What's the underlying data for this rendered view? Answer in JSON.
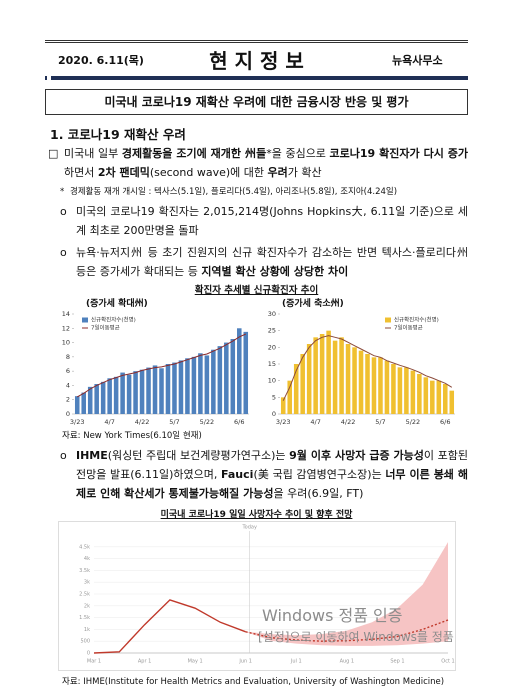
{
  "header": {
    "date": "2020. 6.11(목)",
    "title": "현 지 정 보",
    "office": "뉴욕사무소"
  },
  "subtitle": "미국내 코로나19 재확산 우려에 대한 금융시장 반응 및 평가",
  "section": "1. 코로나19 재확산 우려",
  "items": [
    {
      "marker": "□",
      "segments": [
        {
          "text": "미국내 일부 "
        },
        {
          "text": "경제활동을 조기에 재개한 州들",
          "bold": true
        },
        {
          "text": "*을 중심으로 "
        },
        {
          "text": "코로나19 확진자가 다시 증가",
          "bold": true
        },
        {
          "text": "하면서 "
        },
        {
          "text": "2차 팬데믹",
          "bold": true
        },
        {
          "text": "(second wave)에 대한 "
        },
        {
          "text": "우려",
          "bold": true
        },
        {
          "text": "가 확산"
        }
      ]
    },
    {
      "marker": "*",
      "segments": [
        {
          "text": "경제활동 재개 개시일 : 텍사스(5.1일), 플로리다(5.4일), 아리조나(5.8일), 조지아(4.24일)"
        }
      ]
    },
    {
      "marker": "o",
      "segments": [
        {
          "text": "미국의 코로나19 확진자는 2,015,214명(Johns Hopkins大, 6.11일 기준)으로 세계 최초로 200만명을 돌파"
        }
      ]
    },
    {
      "marker": "o",
      "segments": [
        {
          "text": "뉴욕·뉴저지州 등 초기 진원지의 신규 확진자수가 감소하는 반면 텍사스·플로리다州 등은 증가세가 확대되는 등 "
        },
        {
          "text": "지역별 확산 상황에 상당한 차이",
          "bold": true
        }
      ]
    },
    {
      "marker": "o",
      "segments": [
        {
          "text": "IHME",
          "bold": true
        },
        {
          "text": "(워싱턴 주립대 보건계량평가연구소)는 "
        },
        {
          "text": "9월 이후 사망자 급증 가능성",
          "bold": true
        },
        {
          "text": "이 포함된 전망을 발표(6.11일)하였으며, "
        },
        {
          "text": "Fauci",
          "bold": true
        },
        {
          "text": "(美 국립 감염병연구소장)는 "
        },
        {
          "text": "너무 이른 봉쇄 해제로 인해 확산세가 통제불가능해질 가능성",
          "bold": true
        },
        {
          "text": "을 우려(6.9일, FT)"
        }
      ]
    }
  ],
  "chart_heading": "확진자 추세별 신규확진자 추이",
  "source1": "자료: New York Times(6.10일 현재)",
  "chart3_heading": "미국내 코로나19 일일 사망자수 추이 및 향후 전망",
  "source2": "자료: IHME(Institute for Health Metrics and Evaluation,  University of Washington Medicine)",
  "watermark": [
    "Windows 정품 인증",
    "[설정]으로 이동하여 Windows를 정품"
  ],
  "chart_data": [
    {
      "type": "bar",
      "title": "(증가세 확대州)",
      "categories": [
        "3/23",
        null,
        null,
        null,
        null,
        "4/7",
        null,
        null,
        null,
        null,
        "4/22",
        null,
        null,
        null,
        null,
        "5/7",
        null,
        null,
        null,
        null,
        "5/22",
        null,
        null,
        null,
        null,
        "6/6",
        null
      ],
      "series": [
        {
          "name": "신규확진자수(천명)",
          "type": "bar",
          "color": "#4f81bd",
          "values": [
            2.5,
            3,
            3.8,
            4.2,
            4.5,
            5,
            5.2,
            5.8,
            5.5,
            6,
            6.2,
            6.5,
            6.8,
            6.4,
            7,
            7.2,
            7.5,
            7.8,
            8,
            8.5,
            8.2,
            9,
            9.5,
            10,
            10.5,
            12,
            11.5
          ]
        },
        {
          "name": "7일이동평균",
          "type": "line",
          "color": "#8b2a2a",
          "values": [
            2.4,
            2.9,
            3.5,
            4,
            4.4,
            4.8,
            5.1,
            5.4,
            5.6,
            5.8,
            6.1,
            6.3,
            6.5,
            6.6,
            6.8,
            7,
            7.3,
            7.6,
            7.9,
            8.2,
            8.4,
            8.8,
            9.2,
            9.7,
            10.2,
            10.8,
            11.2
          ]
        }
      ],
      "ylim": [
        0,
        14
      ],
      "yticks": [
        0,
        2,
        4,
        6,
        8,
        10,
        12,
        14
      ],
      "legend": "top-left"
    },
    {
      "type": "bar",
      "title": "(증가세 축소州)",
      "categories": [
        "3/23",
        null,
        null,
        null,
        null,
        "4/7",
        null,
        null,
        null,
        null,
        "4/22",
        null,
        null,
        null,
        null,
        "5/7",
        null,
        null,
        null,
        null,
        "5/22",
        null,
        null,
        null,
        null,
        "6/6",
        null
      ],
      "series": [
        {
          "name": "신규확진자수(천명)",
          "type": "bar",
          "color": "#f0c030",
          "values": [
            5,
            10,
            15,
            18,
            21,
            23,
            24,
            25,
            22,
            23,
            21,
            20,
            19,
            18,
            17,
            17,
            16,
            15,
            14,
            14,
            13,
            12,
            11,
            10,
            10,
            9,
            7
          ]
        },
        {
          "name": "7일이동평균",
          "type": "line",
          "color": "#8b4a3a",
          "values": [
            4,
            8,
            13,
            17,
            20,
            22,
            23,
            23.5,
            23,
            22.5,
            21.5,
            20.5,
            19.5,
            18.5,
            17.5,
            17,
            16,
            15.3,
            14.6,
            14,
            13.3,
            12.5,
            11.5,
            10.8,
            10,
            9.2,
            8
          ]
        }
      ],
      "ylim": [
        0,
        30
      ],
      "yticks": [
        0,
        5,
        10,
        15,
        20,
        25,
        30
      ],
      "legend": "top-right"
    },
    {
      "type": "line",
      "annotation": "Today",
      "categories": [
        "Mar 1",
        null,
        "Apr 1",
        null,
        "May 1",
        null,
        "Jun 1",
        null,
        "Jul 1",
        null,
        "Aug 1",
        null,
        "Sep 1",
        null,
        "Oct 1"
      ],
      "series": [
        {
          "color": "#c0392b",
          "dashed": false,
          "values": [
            0,
            50,
            1200,
            2250,
            1900,
            1300,
            900,
            null,
            null,
            null,
            null,
            null,
            null,
            null,
            null
          ]
        },
        {
          "color": "#c0392b",
          "dashed": true,
          "band_color": "#f6c4c4",
          "values": [
            null,
            null,
            null,
            null,
            null,
            null,
            900,
            650,
            550,
            500,
            520,
            580,
            700,
            1000,
            1400
          ],
          "upper": [
            null,
            null,
            null,
            null,
            null,
            null,
            900,
            800,
            750,
            800,
            950,
            1300,
            1900,
            2900,
            4700
          ],
          "lower": [
            null,
            null,
            null,
            null,
            null,
            null,
            900,
            520,
            400,
            330,
            300,
            300,
            330,
            400,
            500
          ]
        }
      ],
      "ylim": [
        0,
        5000
      ],
      "yticks": [
        0,
        500,
        {
          "value": 1000,
          "label": "1k"
        },
        {
          "value": 1500,
          "label": "1.5k"
        },
        {
          "value": 2000,
          "label": "2k"
        },
        {
          "value": 2500,
          "label": "2.5k"
        },
        {
          "value": 3000,
          "label": "3k"
        },
        {
          "value": 3500,
          "label": "3.5k"
        },
        {
          "value": 4000,
          "label": "4k"
        },
        {
          "value": 4500,
          "label": "4.5k"
        }
      ],
      "grid": true
    }
  ]
}
